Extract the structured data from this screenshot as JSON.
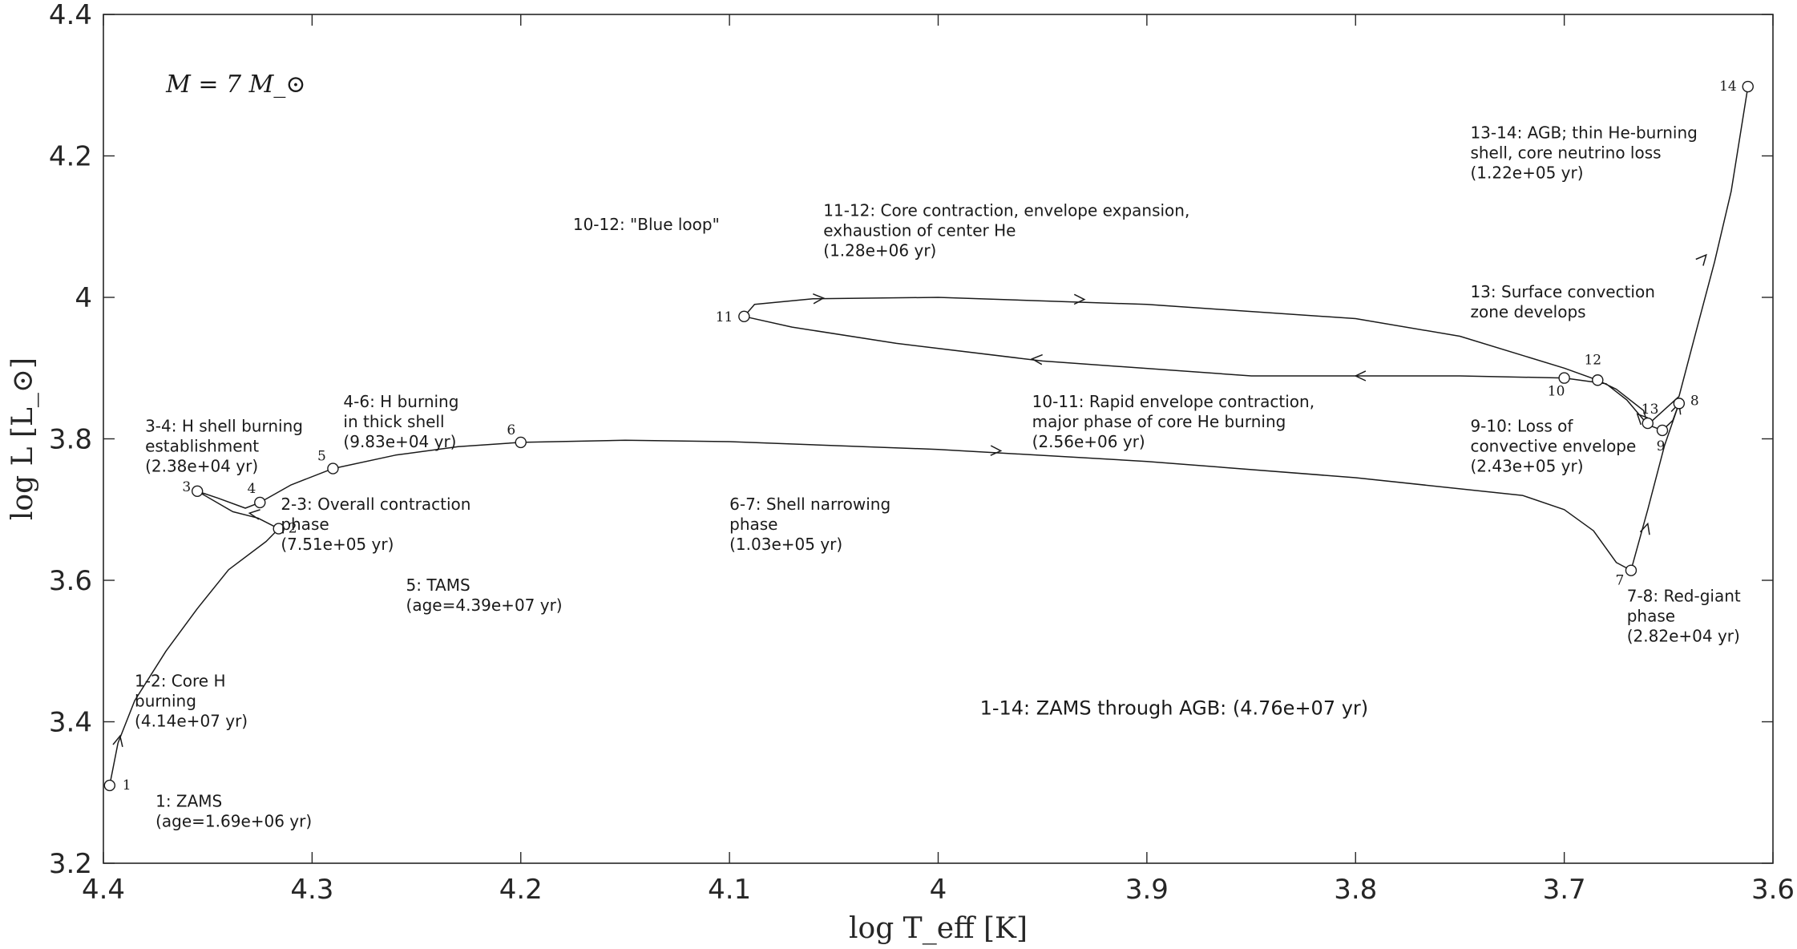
{
  "chart_data": {
    "type": "line",
    "xlabel": "log T_eff [K]",
    "ylabel": "log L [L_⊙]",
    "xlim": [
      4.4,
      3.6
    ],
    "ylim": [
      3.2,
      4.4
    ],
    "x_reversed": true,
    "xticks": [
      4.4,
      4.3,
      4.2,
      4.1,
      4.0,
      3.9,
      3.8,
      3.7,
      3.6
    ],
    "xtick_labels": [
      "4.4",
      "4.3",
      "4.2",
      "4.1",
      "4",
      "3.9",
      "3.8",
      "3.7",
      "3.6"
    ],
    "yticks": [
      3.2,
      3.4,
      3.6,
      3.8,
      4.0,
      4.2,
      4.4
    ],
    "ytick_labels": [
      "3.2",
      "3.4",
      "3.6",
      "3.8",
      "4",
      "4.2",
      "4.4"
    ],
    "grid": false,
    "mass_label": "M = 7 M_⊙",
    "track": [
      [
        4.397,
        3.31
      ],
      [
        4.393,
        3.37
      ],
      [
        4.385,
        3.43
      ],
      [
        4.37,
        3.5
      ],
      [
        4.355,
        3.56
      ],
      [
        4.34,
        3.615
      ],
      [
        4.322,
        3.655
      ],
      [
        4.316,
        3.673
      ],
      [
        4.326,
        3.688
      ],
      [
        4.338,
        3.697
      ],
      [
        4.355,
        3.726
      ],
      [
        4.345,
        3.716
      ],
      [
        4.332,
        3.702
      ],
      [
        4.325,
        3.71
      ],
      [
        4.31,
        3.735
      ],
      [
        4.29,
        3.758
      ],
      [
        4.26,
        3.777
      ],
      [
        4.23,
        3.789
      ],
      [
        4.2,
        3.795
      ],
      [
        4.15,
        3.798
      ],
      [
        4.1,
        3.796
      ],
      [
        4.0,
        3.785
      ],
      [
        3.9,
        3.768
      ],
      [
        3.8,
        3.745
      ],
      [
        3.72,
        3.72
      ],
      [
        3.7,
        3.7
      ],
      [
        3.686,
        3.67
      ],
      [
        3.675,
        3.625
      ],
      [
        3.668,
        3.614
      ],
      [
        3.66,
        3.7
      ],
      [
        3.652,
        3.79
      ],
      [
        3.645,
        3.85
      ],
      [
        3.648,
        3.826
      ],
      [
        3.653,
        3.812
      ],
      [
        3.66,
        3.82
      ],
      [
        3.67,
        3.855
      ],
      [
        3.68,
        3.878
      ],
      [
        3.7,
        3.886
      ],
      [
        3.75,
        3.889
      ],
      [
        3.85,
        3.889
      ],
      [
        3.95,
        3.91
      ],
      [
        4.02,
        3.935
      ],
      [
        4.07,
        3.958
      ],
      [
        4.093,
        3.973
      ],
      [
        4.088,
        3.99
      ],
      [
        4.06,
        3.998
      ],
      [
        4.0,
        4.0
      ],
      [
        3.9,
        3.99
      ],
      [
        3.8,
        3.97
      ],
      [
        3.75,
        3.945
      ],
      [
        3.7,
        3.9
      ],
      [
        3.684,
        3.883
      ],
      [
        3.675,
        3.87
      ],
      [
        3.662,
        3.84
      ],
      [
        3.66,
        3.82
      ],
      [
        3.645,
        3.86
      ],
      [
        3.637,
        3.95
      ],
      [
        3.628,
        4.05
      ],
      [
        3.62,
        4.15
      ],
      [
        3.612,
        4.298
      ]
    ],
    "arrows": [
      [
        4.394,
        3.355,
        4.392,
        3.38
      ],
      [
        4.318,
        3.69,
        4.33,
        3.695
      ],
      [
        3.98,
        3.784,
        3.97,
        3.783
      ],
      [
        3.662,
        3.66,
        3.66,
        3.68
      ],
      [
        3.647,
        3.832,
        3.645,
        3.85
      ],
      [
        3.66,
        3.82,
        3.665,
        3.835
      ],
      [
        3.785,
        3.889,
        3.8,
        3.889
      ],
      [
        3.94,
        3.91,
        3.955,
        3.913
      ],
      [
        4.06,
        3.998,
        4.055,
        3.999
      ],
      [
        3.95,
        3.998,
        3.93,
        3.997
      ],
      [
        3.635,
        4.05,
        3.632,
        4.06
      ]
    ],
    "points": [
      {
        "label": "1",
        "x": 4.397,
        "y": 3.31
      },
      {
        "label": "2",
        "x": 4.316,
        "y": 3.673
      },
      {
        "label": "3",
        "x": 4.355,
        "y": 3.726
      },
      {
        "label": "4",
        "x": 4.325,
        "y": 3.71
      },
      {
        "label": "5",
        "x": 4.29,
        "y": 3.758
      },
      {
        "label": "6",
        "x": 4.2,
        "y": 3.795
      },
      {
        "label": "7",
        "x": 3.668,
        "y": 3.614
      },
      {
        "label": "8",
        "x": 3.645,
        "y": 3.85
      },
      {
        "label": "9",
        "x": 3.653,
        "y": 3.812
      },
      {
        "label": "10",
        "x": 3.7,
        "y": 3.886
      },
      {
        "label": "11",
        "x": 4.093,
        "y": 3.973
      },
      {
        "label": "12",
        "x": 3.684,
        "y": 3.883
      },
      {
        "label": "13",
        "x": 3.66,
        "y": 3.822
      },
      {
        "label": "14",
        "x": 3.612,
        "y": 4.298
      }
    ],
    "annotations": [
      {
        "x": 4.375,
        "y": 3.28,
        "lines": [
          "1: ZAMS",
          "(age=1.69e+06 yr)"
        ]
      },
      {
        "x": 4.385,
        "y": 3.45,
        "lines": [
          "1-2: Core H",
          "burning",
          "(4.14e+07 yr)"
        ]
      },
      {
        "x": 4.315,
        "y": 3.7,
        "lines": [
          "2-3: Overall contraction",
          "phase",
          "(7.51e+05 yr)"
        ]
      },
      {
        "x": 4.38,
        "y": 3.81,
        "lines": [
          "3-4: H shell burning",
          "establishment",
          "(2.38e+04 yr)"
        ]
      },
      {
        "x": 4.285,
        "y": 3.845,
        "lines": [
          "4-6: H burning",
          "in thick shell",
          "(9.83e+04 yr)"
        ]
      },
      {
        "x": 4.255,
        "y": 3.585,
        "lines": [
          "5: TAMS",
          "(age=4.39e+07 yr)"
        ]
      },
      {
        "x": 4.1,
        "y": 3.7,
        "lines": [
          "6-7: Shell narrowing",
          "phase",
          "(1.03e+05 yr)"
        ]
      },
      {
        "x": 3.955,
        "y": 3.845,
        "lines": [
          "10-11: Rapid envelope contraction,",
          "major phase of core He burning",
          "(2.56e+06 yr)"
        ]
      },
      {
        "x": 4.055,
        "y": 4.115,
        "lines": [
          "11-12: Core contraction, envelope expansion,",
          "exhaustion of center He",
          "(1.28e+06 yr)"
        ]
      },
      {
        "x": 4.175,
        "y": 4.095,
        "lines": [
          "10-12: \"Blue loop\""
        ]
      },
      {
        "x": 3.745,
        "y": 4.0,
        "lines": [
          "13: Surface convection",
          "zone develops"
        ]
      },
      {
        "x": 3.745,
        "y": 4.225,
        "lines": [
          "13-14: AGB; thin He-burning",
          "shell, core neutrino loss",
          "(1.22e+05 yr)"
        ]
      },
      {
        "x": 3.745,
        "y": 3.81,
        "lines": [
          "9-10: Loss of",
          "convective envelope",
          "(2.43e+05 yr)"
        ]
      },
      {
        "x": 3.67,
        "y": 3.57,
        "lines": [
          "7-8: Red-giant",
          "phase",
          "(2.82e+04 yr)"
        ]
      },
      {
        "x": 3.98,
        "y": 3.41,
        "lines": [
          "1-14: ZAMS through AGB: (4.76e+07 yr)"
        ],
        "large": true
      }
    ]
  }
}
